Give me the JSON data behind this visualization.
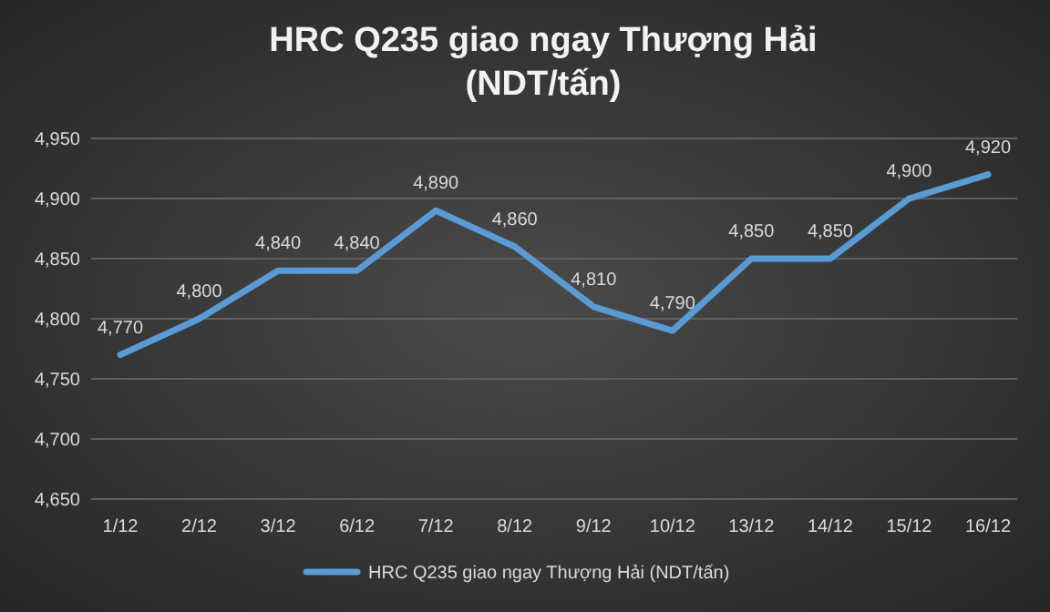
{
  "chart_data": {
    "type": "line",
    "title": "HRC Q235 giao ngay Thượng Hải\n(NDT/tấn)",
    "categories": [
      "1/12",
      "2/12",
      "3/12",
      "6/12",
      "7/12",
      "8/12",
      "9/12",
      "10/12",
      "13/12",
      "14/12",
      "15/12",
      "16/12"
    ],
    "series": [
      {
        "name": "HRC Q235 giao ngay Thượng Hải (NDT/tấn)",
        "color": "#5b9bd5",
        "values": [
          4770,
          4800,
          4840,
          4840,
          4890,
          4860,
          4810,
          4790,
          4850,
          4850,
          4900,
          4920
        ]
      }
    ],
    "ylim": [
      4650,
      4950
    ],
    "yticks": [
      {
        "value": 4650,
        "label": "4,650"
      },
      {
        "value": 4700,
        "label": "4,700"
      },
      {
        "value": 4750,
        "label": "4,750"
      },
      {
        "value": 4800,
        "label": "4,800"
      },
      {
        "value": 4850,
        "label": "4,850"
      },
      {
        "value": 4900,
        "label": "4,900"
      },
      {
        "value": 4950,
        "label": "4,950"
      }
    ],
    "value_labels": [
      [
        "4,770",
        "4,800",
        "4,840",
        "4,840",
        "4,890",
        "4,860",
        "4,810",
        "4,790",
        "4,850",
        "4,850",
        "4,900",
        "4,920"
      ]
    ],
    "grid": "y",
    "legend": "bottom",
    "marker": "none",
    "line_style": "solid"
  }
}
